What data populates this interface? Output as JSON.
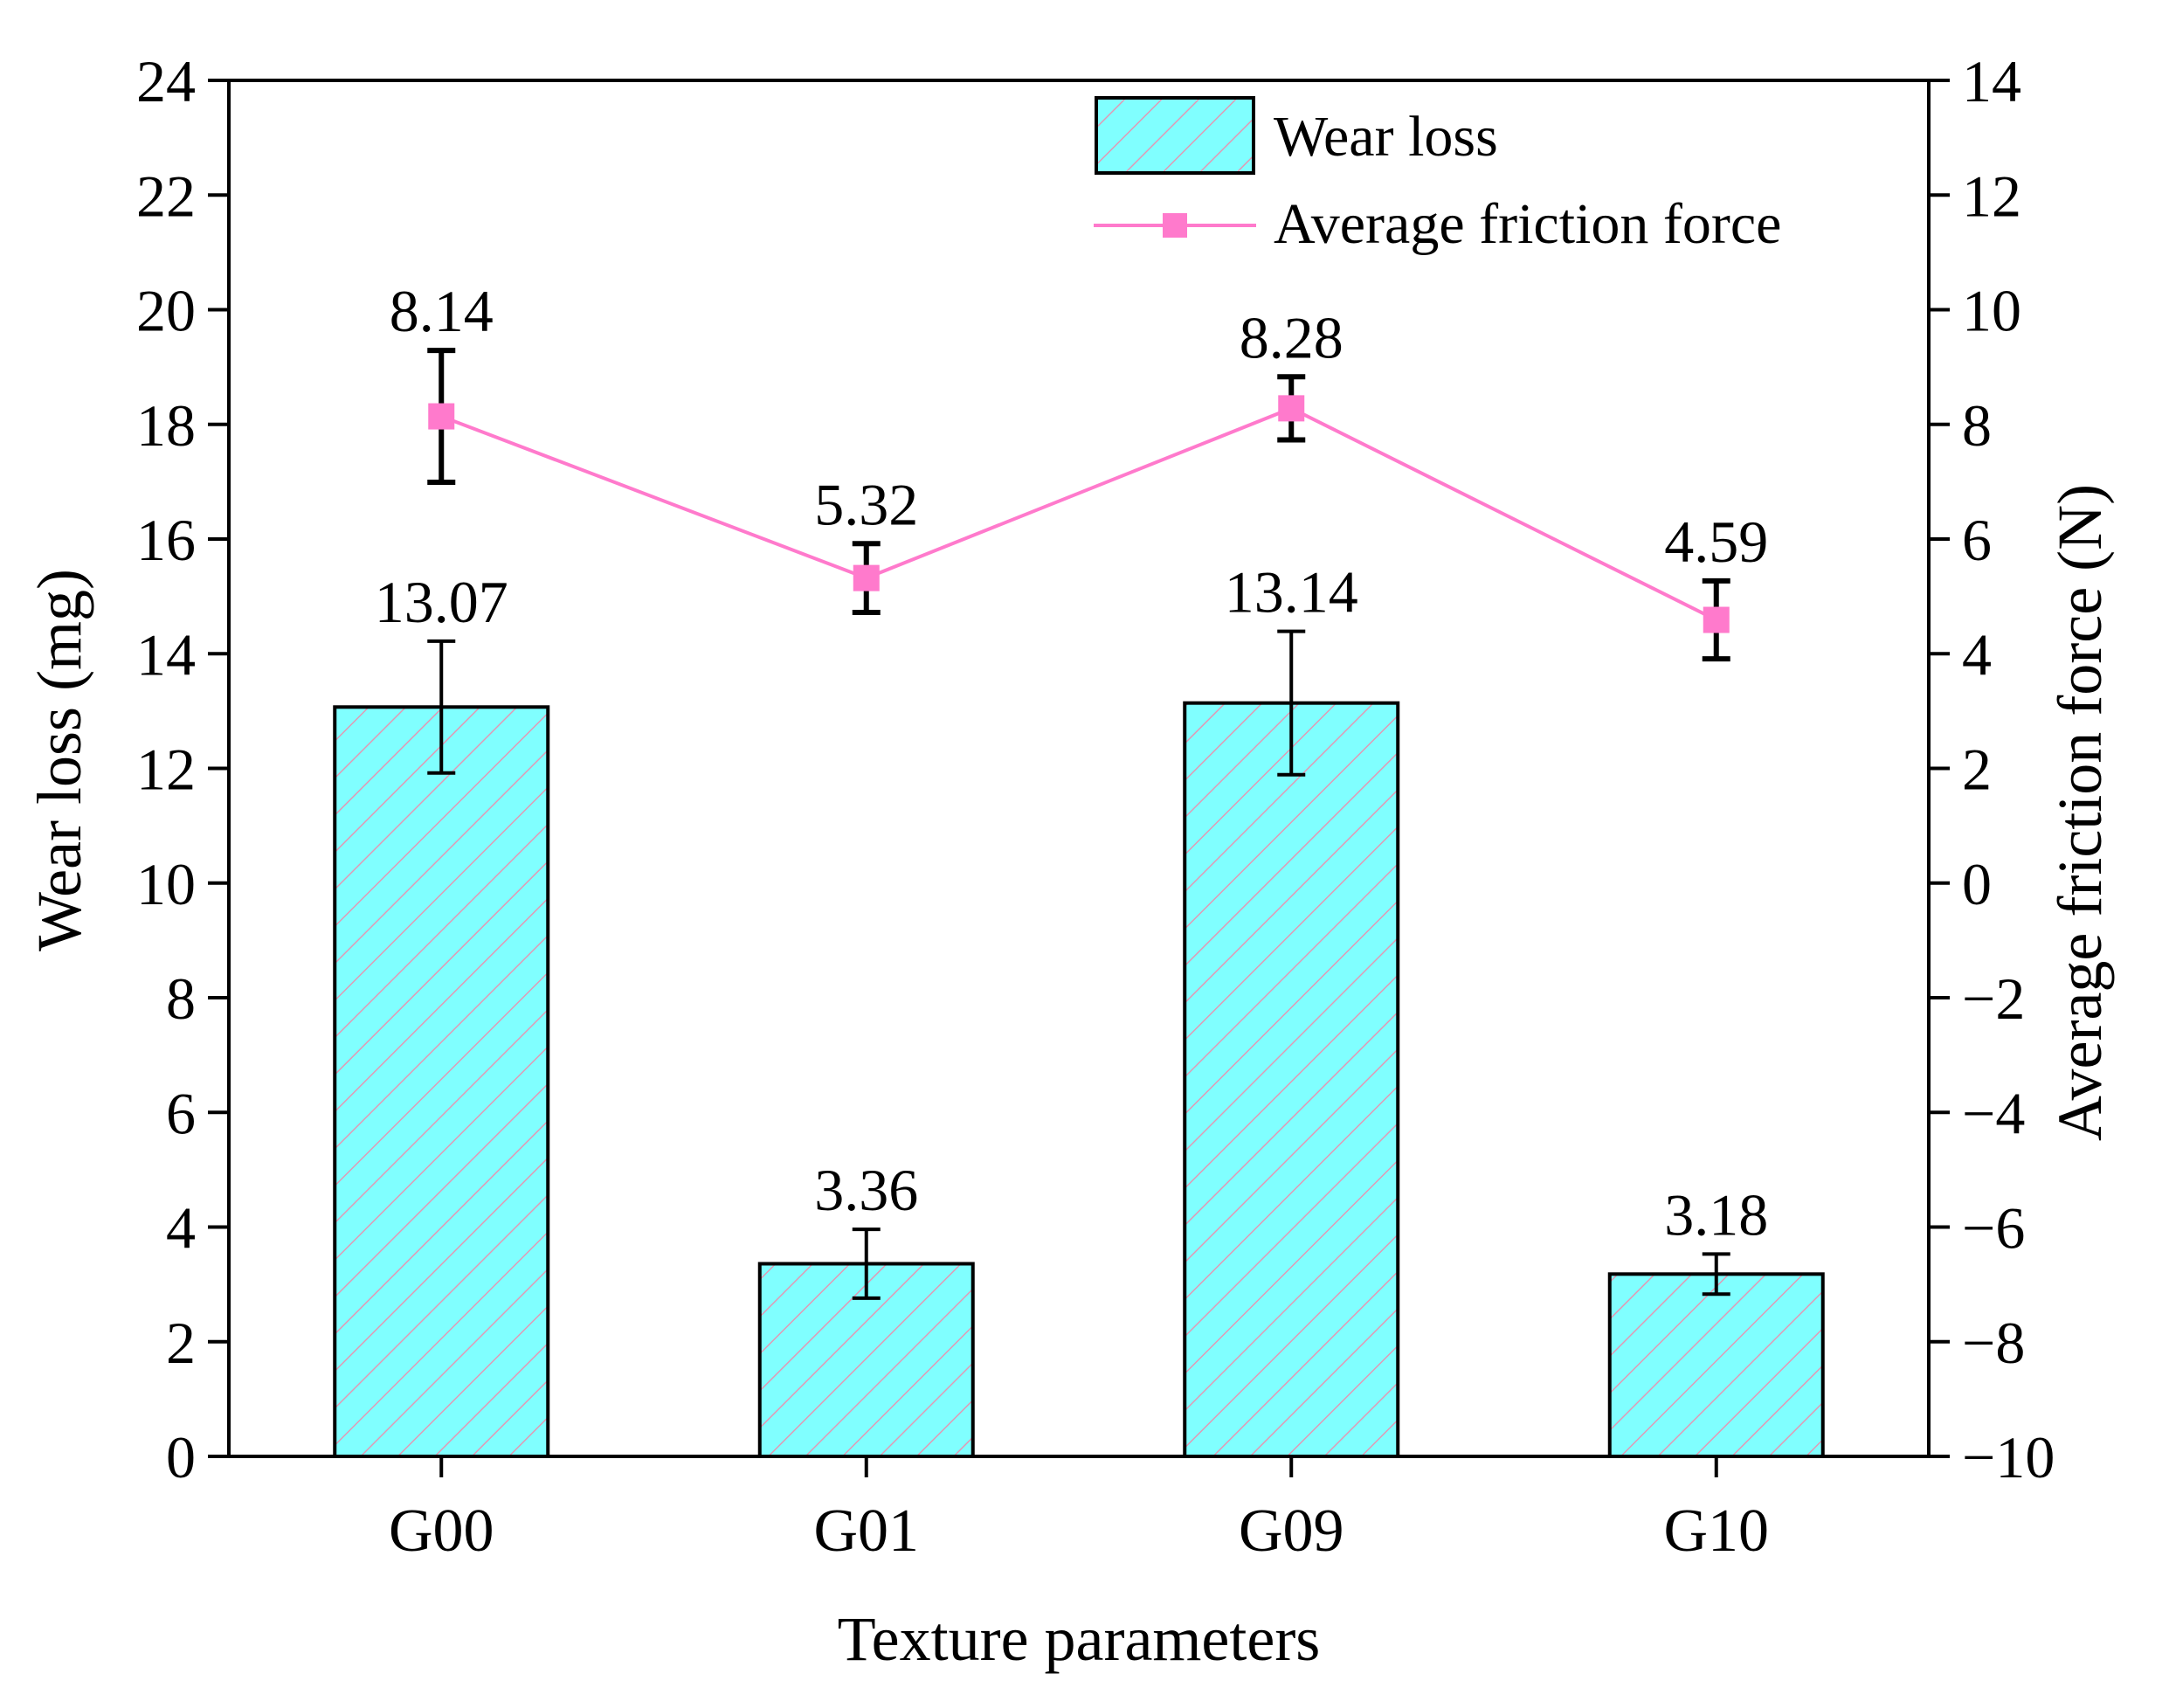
{
  "chart_data": {
    "type": "bar",
    "categories": [
      "G00",
      "G01",
      "G09",
      "G10"
    ],
    "xlabel": "Texture parameters",
    "ylabel_left": "Wear loss (mg)",
    "ylabel_right": "Average friction force (N)",
    "left_axis": {
      "min": 0,
      "max": 24,
      "ticks": [
        0,
        2,
        4,
        6,
        8,
        10,
        12,
        14,
        16,
        18,
        20,
        22,
        24
      ]
    },
    "right_axis": {
      "min": -10,
      "max": 14,
      "ticks": [
        -10,
        -8,
        -6,
        -4,
        -2,
        0,
        2,
        4,
        6,
        8,
        10,
        12,
        14
      ]
    },
    "series": [
      {
        "name": "Wear loss",
        "kind": "bar",
        "axis": "left",
        "values": [
          13.07,
          3.36,
          13.14,
          3.18
        ],
        "labels": [
          "13.07",
          "3.36",
          "13.14",
          "3.18"
        ],
        "errors": [
          1.15,
          0.6,
          1.25,
          0.35
        ],
        "fill": "#80FFFF",
        "hatch": "#E09AB5"
      },
      {
        "name": "Average friction force",
        "kind": "line",
        "axis": "right",
        "values": [
          8.14,
          5.32,
          8.28,
          4.59
        ],
        "labels": [
          "8.14",
          "5.32",
          "8.28",
          "4.59"
        ],
        "errors": [
          1.15,
          0.6,
          0.55,
          0.68
        ],
        "color": "#FF7ACC"
      }
    ],
    "legend": {
      "position": "top-right"
    }
  }
}
